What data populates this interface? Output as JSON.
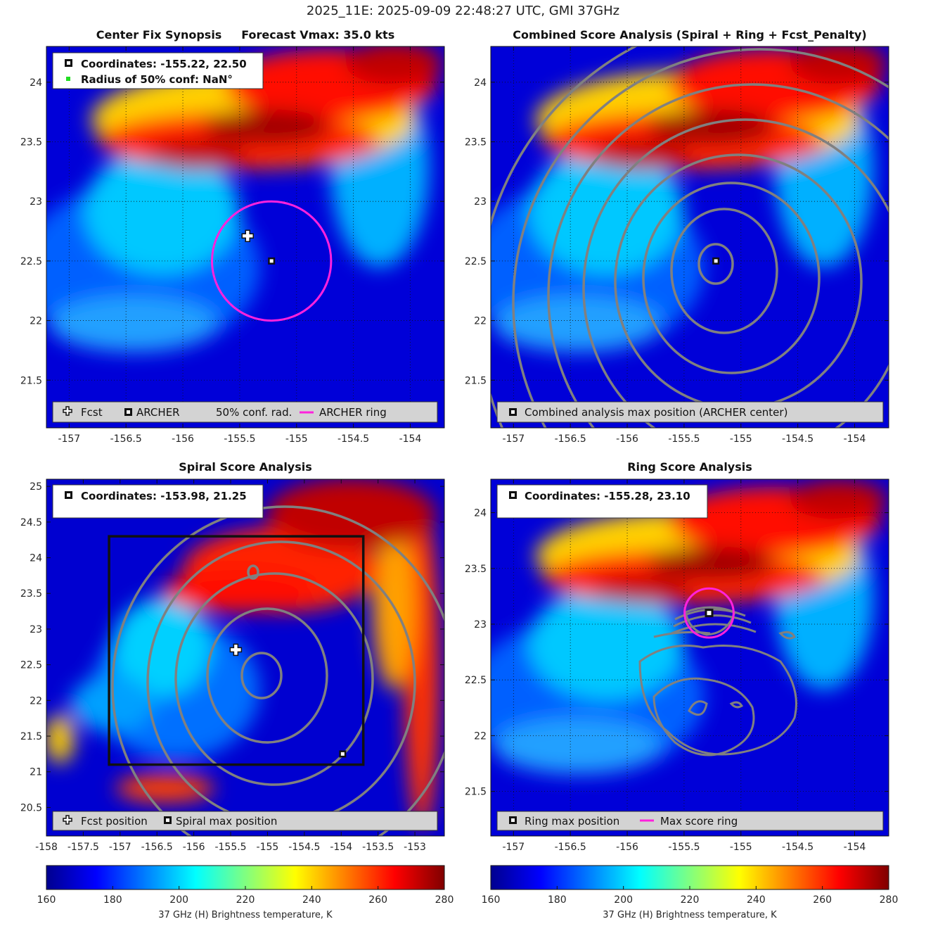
{
  "main_title": "2025_11E: 2025-09-09 22:48:27 UTC, GMI 37GHz",
  "colors": {
    "archer_ring": "#ff22dd",
    "contour": "#808080",
    "legend_bg": "#d3d3d3",
    "colormap": "jet"
  },
  "chart_data": [
    {
      "type": "heatmap",
      "title_left": "Center Fix Synopsis",
      "title_right": "Forecast Vmax: 35.0 kts",
      "xlim": [
        -157.2,
        -153.7
      ],
      "ylim": [
        21.1,
        24.3
      ],
      "xticks": [
        -157,
        -156.5,
        -156,
        -155.5,
        -155,
        -154.5,
        -154
      ],
      "yticks": [
        21.5,
        22,
        22.5,
        23,
        23.5,
        24
      ],
      "xtick_labels": [
        "-157",
        "-156.5",
        "-156",
        "-155.5",
        "-155",
        "-154.5",
        "-154"
      ],
      "ytick_labels": [
        "21.5",
        "22",
        "22.5",
        "23",
        "23.5",
        "24"
      ],
      "grid": true,
      "forecast_position": [
        -155.43,
        22.71
      ],
      "archer_center": [
        -155.22,
        22.5
      ],
      "archer_ring_radius_deg": 0.5,
      "info_box": [
        "Coordinates: -155.22, 22.50",
        "Radius of 50% conf: NaN°"
      ],
      "legend": [
        "Fcst",
        "ARCHER",
        "50% conf. rad.",
        "ARCHER ring"
      ]
    },
    {
      "type": "heatmap",
      "title": "Combined Score Analysis (Spiral + Ring + Fcst_Penalty)",
      "xlim": [
        -157.2,
        -153.7
      ],
      "ylim": [
        21.1,
        24.3
      ],
      "xticks": [
        -157,
        -156.5,
        -156,
        -155.5,
        -155,
        -154.5,
        -154
      ],
      "yticks": [
        21.5,
        22,
        22.5,
        23,
        23.5,
        24
      ],
      "xtick_labels": [
        "-157",
        "-156.5",
        "-156",
        "-155.5",
        "-155",
        "-154.5",
        "-154"
      ],
      "ytick_labels": [
        "21.5",
        "22",
        "22.5",
        "23",
        "23.5",
        "24"
      ],
      "grid": true,
      "max_position": [
        -155.22,
        22.5
      ],
      "legend": [
        "Combined analysis max position (ARCHER center)"
      ]
    },
    {
      "type": "heatmap",
      "title": "Spiral Score Analysis",
      "xlim": [
        -158.0,
        -152.6
      ],
      "ylim": [
        20.1,
        25.1
      ],
      "xticks": [
        -158,
        -157.5,
        -157,
        -156.5,
        -156,
        -155.5,
        -155,
        -154.5,
        -154,
        -153.5,
        -153
      ],
      "yticks": [
        20.5,
        21,
        21.5,
        22,
        22.5,
        23,
        23.5,
        24,
        24.5,
        25
      ],
      "xtick_labels": [
        "-158",
        "-157.5",
        "-157",
        "-156.5",
        "-156",
        "-155.5",
        "-155",
        "-154.5",
        "-154",
        "-153.5",
        "-153"
      ],
      "ytick_labels": [
        "20.5",
        "21",
        "21.5",
        "22",
        "22.5",
        "23",
        "23.5",
        "24",
        "24.5",
        "25"
      ],
      "grid": false,
      "forecast_position": [
        -155.43,
        22.71
      ],
      "max_position": [
        -153.98,
        21.25
      ],
      "search_box": [
        -157.15,
        21.1,
        -153.7,
        24.3
      ],
      "info_box": [
        "Coordinates: -153.98, 21.25"
      ],
      "legend": [
        "Fcst position",
        "Spiral max position"
      ]
    },
    {
      "type": "heatmap",
      "title": "Ring Score Analysis",
      "xlim": [
        -157.2,
        -153.7
      ],
      "ylim": [
        21.1,
        24.3
      ],
      "xticks": [
        -157,
        -156.5,
        -156,
        -155.5,
        -155,
        -154.5,
        -154
      ],
      "yticks": [
        21.5,
        22,
        22.5,
        23,
        23.5,
        24
      ],
      "xtick_labels": [
        "-157",
        "-156.5",
        "-156",
        "-155.5",
        "-155",
        "-154.5",
        "-154"
      ],
      "ytick_labels": [
        "21.5",
        "22",
        "22.5",
        "23",
        "23.5",
        "24"
      ],
      "grid": true,
      "max_position": [
        -155.28,
        23.1
      ],
      "ring_radius_deg": 0.22,
      "info_box": [
        "Coordinates: -155.28, 23.10"
      ],
      "legend": [
        "Ring max position",
        "Max score ring"
      ]
    }
  ],
  "colorbars": [
    {
      "ticks": [
        160,
        180,
        200,
        220,
        240,
        260,
        280
      ],
      "tick_labels": [
        "160",
        "180",
        "200",
        "220",
        "240",
        "260",
        "280"
      ],
      "label": "37 GHz (H) Brightness temperature, K",
      "range": [
        160,
        280
      ]
    },
    {
      "ticks": [
        160,
        180,
        200,
        220,
        240,
        260,
        280
      ],
      "tick_labels": [
        "160",
        "180",
        "200",
        "220",
        "240",
        "260",
        "280"
      ],
      "label": "37 GHz (H) Brightness temperature, K",
      "range": [
        160,
        280
      ]
    }
  ]
}
